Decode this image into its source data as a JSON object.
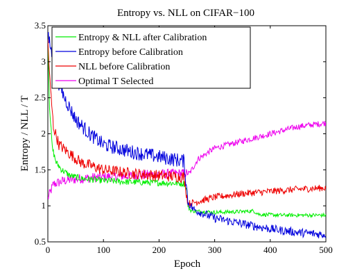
{
  "chart_data": {
    "type": "line",
    "title": "Entropy vs. NLL on CIFAR−100",
    "xlabel": "Epoch",
    "ylabel": "Entropy / NLL / T",
    "xlim": [
      0,
      500
    ],
    "ylim": [
      0.5,
      3.5
    ],
    "xticks": [
      0,
      100,
      200,
      300,
      400,
      500
    ],
    "yticks": [
      0.5,
      1,
      1.5,
      2,
      2.5,
      3,
      3.5
    ],
    "xtick_labels": [
      "0",
      "100",
      "200",
      "300",
      "400",
      "500"
    ],
    "ytick_labels": [
      "0.5",
      "1",
      "1.5",
      "2",
      "2.5",
      "3",
      "3.5"
    ],
    "grid": false,
    "legend_position": "top-left",
    "series": [
      {
        "name": "Entropy & NLL after Calibration",
        "color": "#00ee00",
        "noise": 0.045,
        "points": [
          [
            0,
            3.3
          ],
          [
            3,
            2.4
          ],
          [
            8,
            1.8
          ],
          [
            15,
            1.6
          ],
          [
            25,
            1.5
          ],
          [
            40,
            1.42
          ],
          [
            60,
            1.38
          ],
          [
            100,
            1.35
          ],
          [
            150,
            1.33
          ],
          [
            200,
            1.32
          ],
          [
            245,
            1.31
          ],
          [
            250,
            1.22
          ],
          [
            252,
            0.98
          ],
          [
            258,
            0.93
          ],
          [
            300,
            0.91
          ],
          [
            350,
            0.92
          ],
          [
            370,
            0.93
          ],
          [
            380,
            0.88
          ],
          [
            420,
            0.87
          ],
          [
            500,
            0.87
          ]
        ]
      },
      {
        "name": "Entropy before Calibration",
        "color": "#0000dd",
        "noise": 0.1,
        "points": [
          [
            0,
            3.35
          ],
          [
            5,
            3.2
          ],
          [
            15,
            2.8
          ],
          [
            30,
            2.5
          ],
          [
            50,
            2.2
          ],
          [
            75,
            2.0
          ],
          [
            100,
            1.85
          ],
          [
            150,
            1.75
          ],
          [
            200,
            1.68
          ],
          [
            245,
            1.62
          ],
          [
            252,
            1.05
          ],
          [
            262,
            0.95
          ],
          [
            300,
            0.83
          ],
          [
            350,
            0.75
          ],
          [
            400,
            0.68
          ],
          [
            450,
            0.63
          ],
          [
            500,
            0.6
          ]
        ]
      },
      {
        "name": "NLL before Calibration",
        "color": "#ee0000",
        "noise": 0.08,
        "points": [
          [
            0,
            3.3
          ],
          [
            4,
            2.7
          ],
          [
            10,
            2.1
          ],
          [
            20,
            1.85
          ],
          [
            35,
            1.75
          ],
          [
            60,
            1.6
          ],
          [
            100,
            1.5
          ],
          [
            150,
            1.45
          ],
          [
            200,
            1.42
          ],
          [
            245,
            1.4
          ],
          [
            252,
            1.03
          ],
          [
            265,
            1.05
          ],
          [
            300,
            1.12
          ],
          [
            350,
            1.17
          ],
          [
            400,
            1.2
          ],
          [
            450,
            1.23
          ],
          [
            500,
            1.25
          ]
        ]
      },
      {
        "name": "Optimal T Selected",
        "color": "#ee00ee",
        "noise": 0.07,
        "points": [
          [
            0,
            1.1
          ],
          [
            10,
            1.3
          ],
          [
            30,
            1.35
          ],
          [
            60,
            1.38
          ],
          [
            100,
            1.4
          ],
          [
            150,
            1.42
          ],
          [
            200,
            1.44
          ],
          [
            245,
            1.45
          ],
          [
            255,
            1.45
          ],
          [
            270,
            1.65
          ],
          [
            300,
            1.8
          ],
          [
            350,
            1.9
          ],
          [
            400,
            2.0
          ],
          [
            450,
            2.1
          ],
          [
            500,
            2.15
          ]
        ]
      }
    ]
  }
}
